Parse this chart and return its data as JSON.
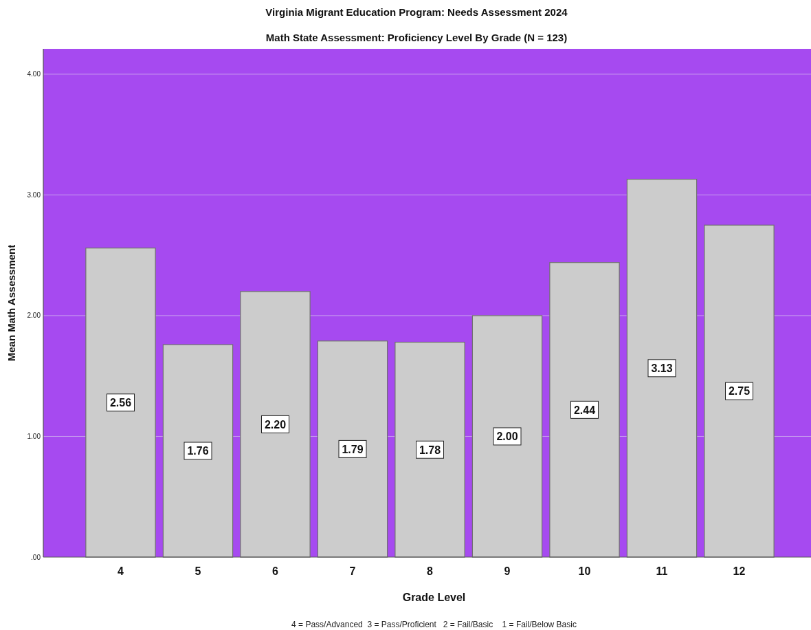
{
  "chart_data": {
    "type": "bar",
    "title": "Virginia Migrant Education Program: Needs Assessment 2024",
    "subtitle": "Math State Assessment: Proficiency Level By Grade (N = 123)",
    "xlabel": "Grade Level",
    "ylabel": "Mean Math Assessment",
    "annotations": [
      "4 = Pass/Advanced  3 = Pass/Proficient   2 = Fail/Basic    1 = Fail/Below Basic"
    ],
    "categories": [
      "4",
      "5",
      "6",
      "7",
      "8",
      "9",
      "10",
      "11",
      "12"
    ],
    "values": [
      2.56,
      1.76,
      2.2,
      1.79,
      1.78,
      2.0,
      2.44,
      3.13,
      2.75
    ],
    "value_labels": [
      "2.56",
      "1.76",
      "2.20",
      "1.79",
      "1.78",
      "2.00",
      "2.44",
      "3.13",
      "2.75"
    ],
    "color": "#cccccc",
    "ylim": [
      0,
      4.21
    ],
    "yticks": [
      {
        "value": 0,
        "label": ".00"
      },
      {
        "value": 1,
        "label": "1.00"
      },
      {
        "value": 2,
        "label": "2.00"
      },
      {
        "value": 3,
        "label": "3.00"
      },
      {
        "value": 4,
        "label": "4.00"
      }
    ],
    "grid": "y"
  }
}
